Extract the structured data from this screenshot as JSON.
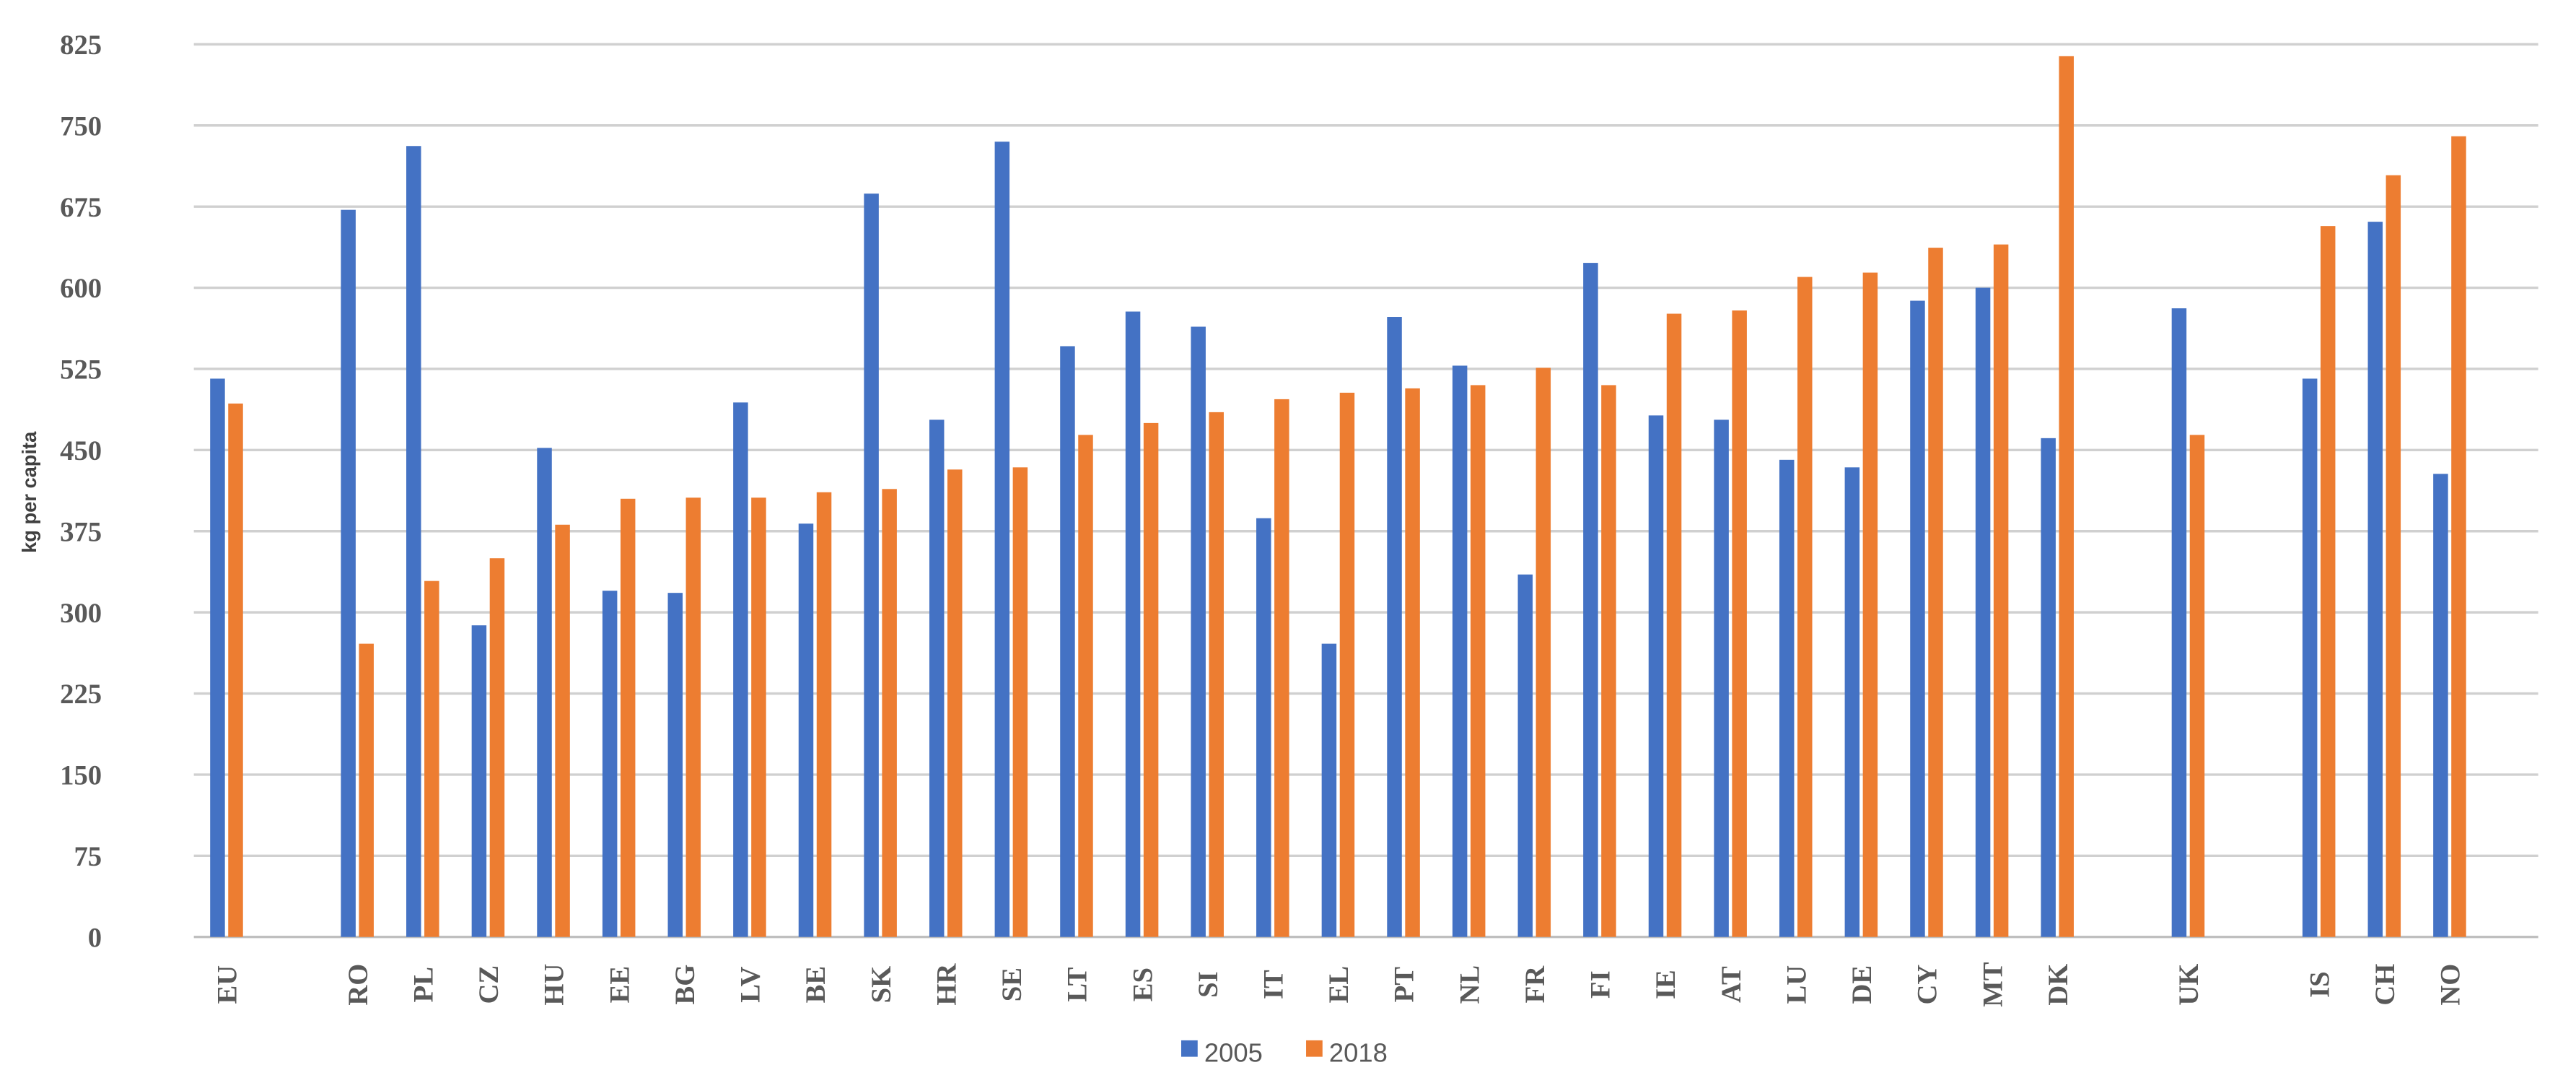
{
  "chart_data": {
    "type": "bar",
    "title": "",
    "xlabel": "",
    "ylabel": "kg per capita",
    "ylim": [
      0,
      825
    ],
    "yticks": [
      0,
      75,
      150,
      225,
      300,
      375,
      450,
      525,
      600,
      675,
      750,
      825
    ],
    "grid": true,
    "legend_position": "bottom",
    "categories": [
      "EU",
      "",
      "RO",
      "PL",
      "CZ",
      "HU",
      "EE",
      "BG",
      "LV",
      "BE",
      "SK",
      "HR",
      "SE",
      "LT",
      "ES",
      "SI",
      "IT",
      "EL",
      "PT",
      "NL",
      "FR",
      "FI",
      "IE",
      "AT",
      "LU",
      "DE",
      "CY",
      "MT",
      "DK",
      "",
      "UK",
      "",
      "IS",
      "CH",
      "NO"
    ],
    "series": [
      {
        "name": "2005",
        "color": "#4472C4",
        "values": [
          516,
          null,
          672,
          731,
          288,
          452,
          320,
          318,
          494,
          382,
          687,
          478,
          735,
          546,
          578,
          564,
          387,
          271,
          573,
          528,
          335,
          623,
          482,
          478,
          441,
          434,
          588,
          600,
          461,
          null,
          581,
          null,
          516,
          661,
          428
        ]
      },
      {
        "name": "2018",
        "color": "#ED7D31",
        "values": [
          493,
          null,
          271,
          329,
          350,
          381,
          405,
          406,
          406,
          411,
          414,
          432,
          434,
          464,
          475,
          485,
          497,
          503,
          507,
          510,
          526,
          510,
          576,
          579,
          610,
          614,
          637,
          640,
          814,
          null,
          464,
          null,
          657,
          704,
          740
        ]
      }
    ]
  }
}
